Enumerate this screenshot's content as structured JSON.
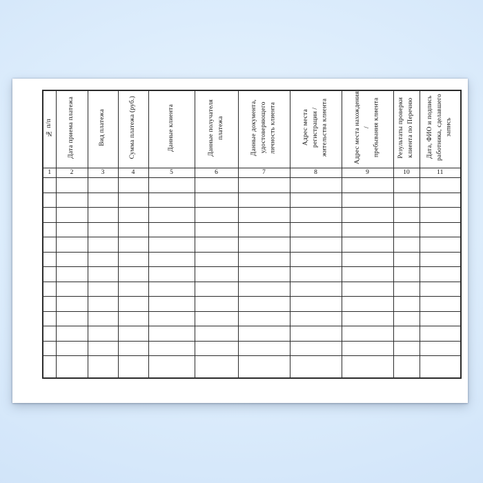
{
  "colors": {
    "background_blue": "#d8e9fb",
    "background_edge_blue": "#c8dcf3",
    "paper": "#ffffff",
    "table_border": "#2b2b2b",
    "text": "#111111"
  },
  "table": {
    "columns": [
      {
        "num": "1",
        "label": "№ п/п"
      },
      {
        "num": "2",
        "label": "Дата приема платежа"
      },
      {
        "num": "3",
        "label": "Вид платежа"
      },
      {
        "num": "4",
        "label": "Сумма платежа (руб.)"
      },
      {
        "num": "5",
        "label": "Данные клиента"
      },
      {
        "num": "6",
        "label": "Данные получателя\nплатежа"
      },
      {
        "num": "7",
        "label": "Данные документа,\nудостоверяющего\nличность клиента"
      },
      {
        "num": "8",
        "label": "Адрес места регистрации /\nжительства клиента"
      },
      {
        "num": "9",
        "label": "Адрес места нахождения /\nпребывания клиента"
      },
      {
        "num": "10",
        "label": "Результаты проверки\nклиента по Перечню"
      },
      {
        "num": "11",
        "label": "Дата, ФИО и подпись\nработника, сделавшего\nзапись"
      }
    ],
    "empty_row_count": 13
  }
}
